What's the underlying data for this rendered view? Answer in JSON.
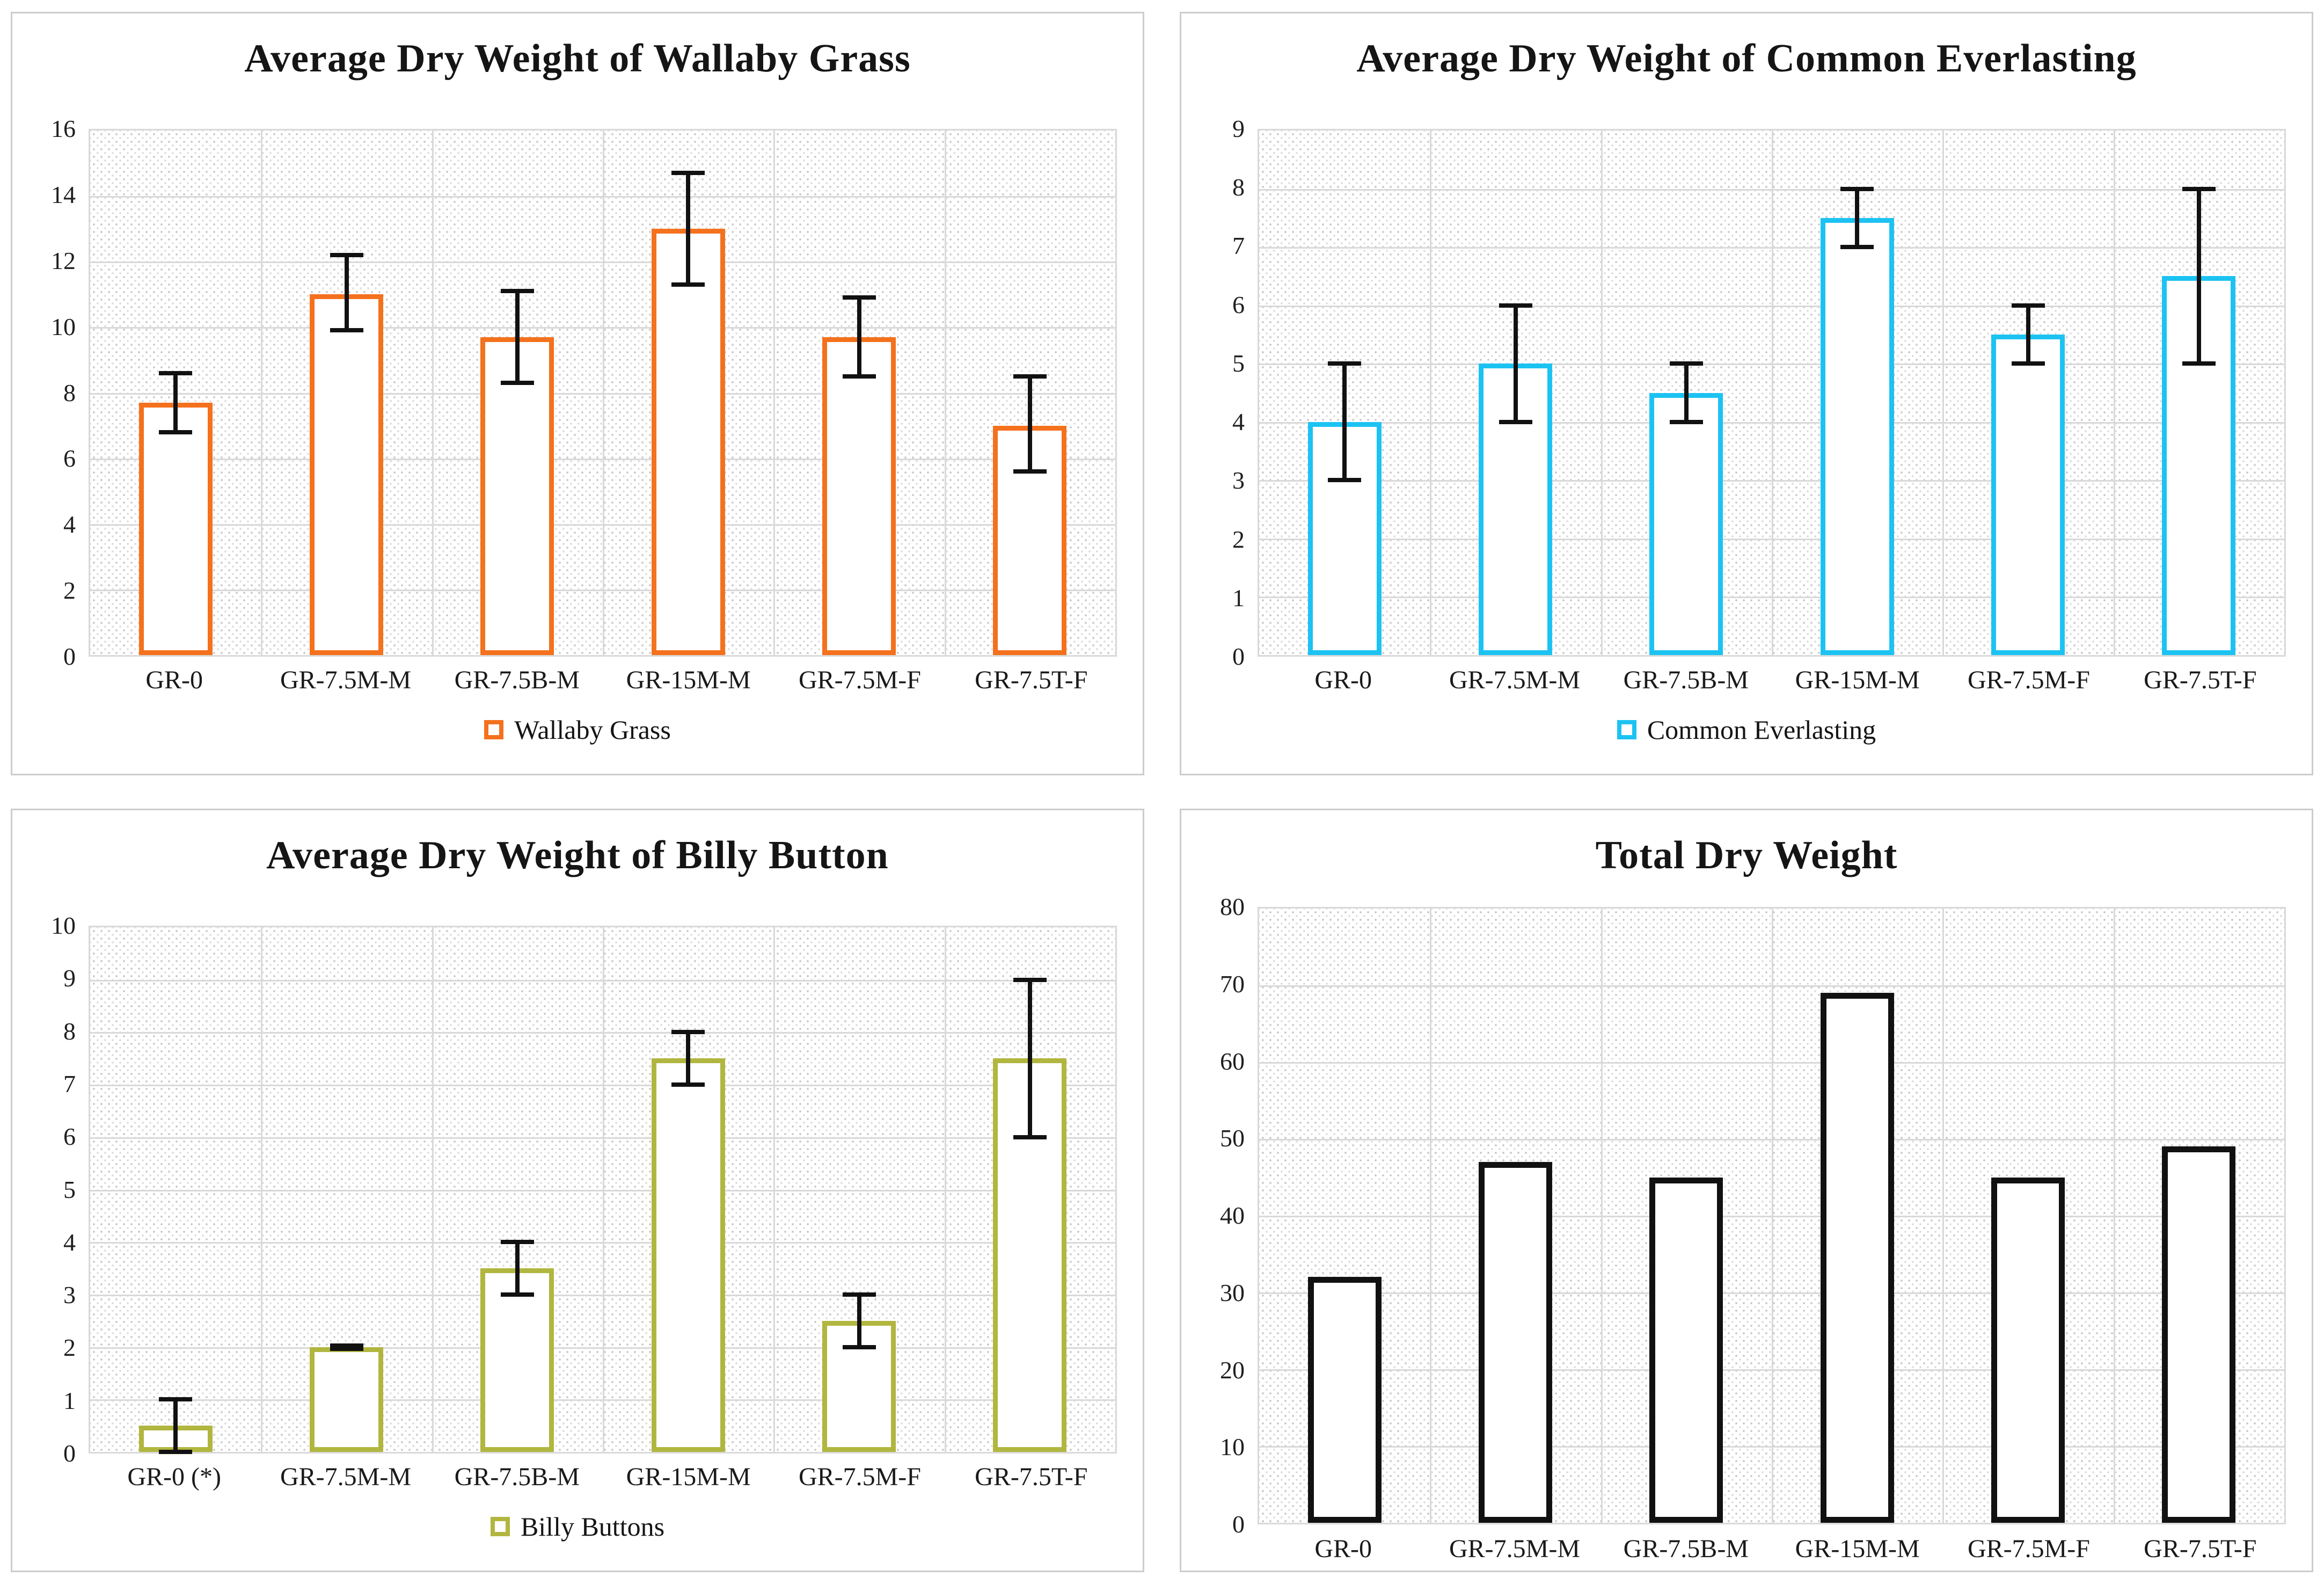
{
  "figure": {
    "background": "#ffffff",
    "panel_border_color": "#cccccc",
    "gridline_color": "#d9d9d9",
    "error_bar_color": "#111111",
    "bar_fill": "#ffffff"
  },
  "chart_data": [
    {
      "type": "bar",
      "title": "Average Dry Weight of Wallaby Grass",
      "legend": "Wallaby Grass",
      "bar_color": "#F4711D",
      "categories": [
        "GR-0",
        "GR-7.5M-M",
        "GR-7.5B-M",
        "GR-15M-M",
        "GR-7.5M-F",
        "GR-7.5T-F"
      ],
      "values": [
        7.7,
        11.0,
        9.7,
        13.0,
        9.7,
        7.0
      ],
      "error_low": [
        6.8,
        9.9,
        8.3,
        11.3,
        8.5,
        5.6
      ],
      "error_high": [
        8.6,
        12.2,
        11.1,
        14.7,
        10.9,
        8.5
      ],
      "xlabel": "",
      "ylabel": "",
      "ylim": [
        0,
        16
      ],
      "y_step": 2,
      "grid": true,
      "legend_position": "bottom",
      "plot_pattern": "diagonal-dot-hatch"
    },
    {
      "type": "bar",
      "title": "Average Dry Weight of Common Everlasting",
      "legend": "Common Everlasting",
      "bar_color": "#1CC3F2",
      "categories": [
        "GR-0",
        "GR-7.5M-M",
        "GR-7.5B-M",
        "GR-15M-M",
        "GR-7.5M-F",
        "GR-7.5T-F"
      ],
      "values": [
        4.0,
        5.0,
        4.5,
        7.5,
        5.5,
        6.5
      ],
      "error_low": [
        3.0,
        4.0,
        4.0,
        7.0,
        5.0,
        5.0
      ],
      "error_high": [
        5.0,
        6.0,
        5.0,
        8.0,
        6.0,
        8.0
      ],
      "xlabel": "",
      "ylabel": "",
      "ylim": [
        0,
        9
      ],
      "y_step": 1,
      "grid": true,
      "legend_position": "bottom",
      "plot_pattern": "diagonal-dot-hatch"
    },
    {
      "type": "bar",
      "title": "Average Dry Weight of Billy Button",
      "legend": "Billy Buttons",
      "bar_color": "#B1B63F",
      "categories": [
        "GR-0 (*)",
        "GR-7.5M-M",
        "GR-7.5B-M",
        "GR-15M-M",
        "GR-7.5M-F",
        "GR-7.5T-F"
      ],
      "values": [
        0.5,
        2.0,
        3.5,
        7.5,
        2.5,
        7.5
      ],
      "error_low": [
        0.0,
        1.97,
        3.0,
        7.0,
        2.0,
        6.0
      ],
      "error_high": [
        1.0,
        2.03,
        4.0,
        8.0,
        3.0,
        9.0
      ],
      "xlabel": "",
      "ylabel": "",
      "ylim": [
        0,
        10
      ],
      "y_step": 1,
      "grid": true,
      "legend_position": "bottom",
      "plot_pattern": "diagonal-dot-hatch"
    },
    {
      "type": "bar",
      "title": "Total Dry Weight",
      "legend": null,
      "bar_color": "#111111",
      "categories": [
        "GR-0",
        "GR-7.5M-M",
        "GR-7.5B-M",
        "GR-15M-M",
        "GR-7.5M-F",
        "GR-7.5T-F"
      ],
      "values": [
        32,
        47,
        45,
        69,
        45,
        49
      ],
      "error_low": null,
      "error_high": null,
      "xlabel": "",
      "ylabel": "",
      "ylim": [
        0,
        80
      ],
      "y_step": 10,
      "grid": true,
      "legend_position": "none",
      "plot_pattern": "diagonal-dot-hatch"
    }
  ]
}
